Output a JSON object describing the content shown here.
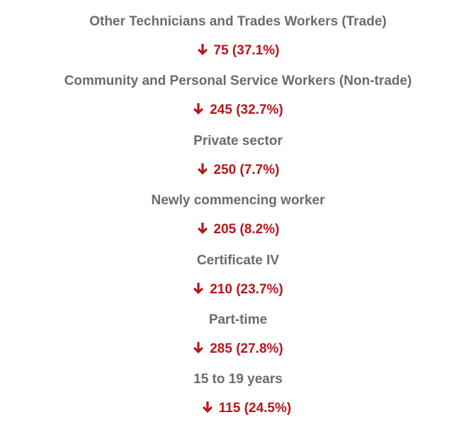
{
  "items": [
    {
      "label": "Other Technicians and Trades Workers (Trade)",
      "change": "75 (37.1%)"
    },
    {
      "label": "Community and Personal Service Workers (Non-trade)",
      "change": "245 (32.7%)"
    },
    {
      "label": "Private sector",
      "change": "250 (7.7%)"
    },
    {
      "label": "Newly commencing worker",
      "change": "205 (8.2%)"
    },
    {
      "label": "Certificate IV",
      "change": "210 (23.7%)"
    },
    {
      "label": "Part-time",
      "change": "285 (27.8%)"
    },
    {
      "label": "15 to 19 years",
      "change": "115 (24.5%)"
    }
  ]
}
